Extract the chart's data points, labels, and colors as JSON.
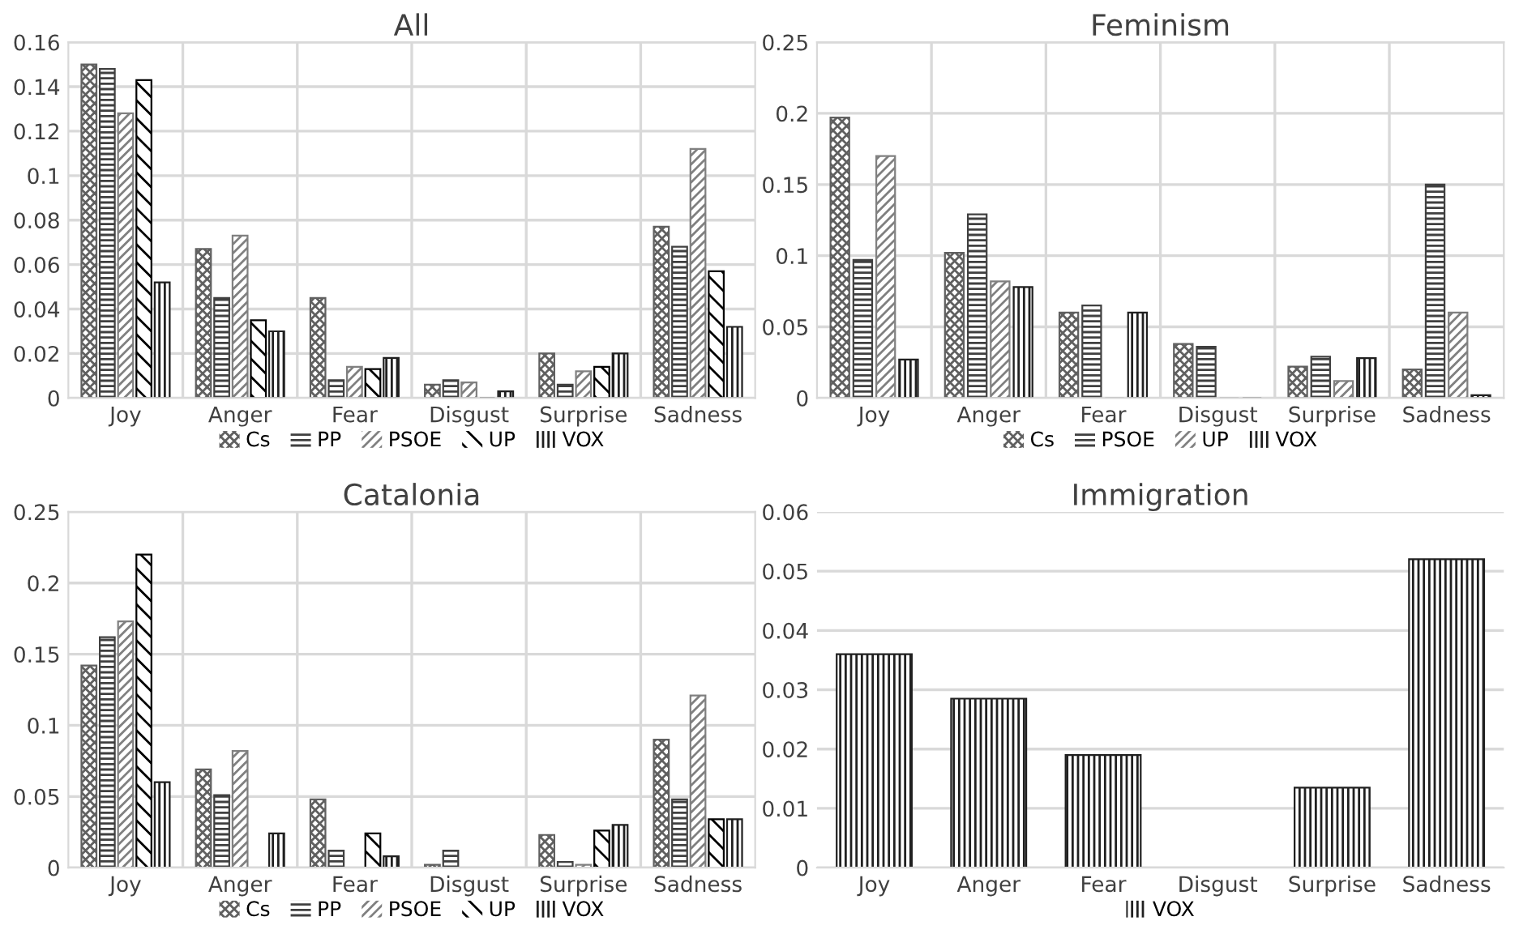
{
  "chart_data": [
    {
      "type": "bar",
      "title": "All",
      "categories": [
        "Joy",
        "Anger",
        "Fear",
        "Disgust",
        "Surprise",
        "Sadness"
      ],
      "ylim": [
        0,
        0.16
      ],
      "yticks": [
        0,
        0.02,
        0.04,
        0.06,
        0.08,
        0.1,
        0.12,
        0.14,
        0.16
      ],
      "grid": true,
      "legend": "bottom",
      "series": [
        {
          "name": "Cs",
          "color": "#606060",
          "values": [
            0.15,
            0.067,
            0.045,
            0.006,
            0.02,
            0.077
          ]
        },
        {
          "name": "PP",
          "color": "#404040",
          "values": [
            0.148,
            0.045,
            0.008,
            0.008,
            0.006,
            0.068
          ]
        },
        {
          "name": "PSOE",
          "color": "#808080",
          "values": [
            0.128,
            0.073,
            0.014,
            0.007,
            0.012,
            0.112
          ]
        },
        {
          "name": "UP",
          "color": "#000000",
          "values": [
            0.143,
            0.035,
            0.013,
            0,
            0.014,
            0.057
          ]
        },
        {
          "name": "VOX",
          "color": "#202020",
          "values": [
            0.052,
            0.03,
            0.018,
            0.003,
            0.02,
            0.032
          ]
        }
      ]
    },
    {
      "type": "bar",
      "title": "Feminism",
      "categories": [
        "Joy",
        "Anger",
        "Fear",
        "Disgust",
        "Surprise",
        "Sadness"
      ],
      "ylim": [
        0,
        0.25
      ],
      "yticks": [
        0,
        0.05,
        0.1,
        0.15,
        0.2,
        0.25
      ],
      "grid": true,
      "legend": "bottom",
      "series": [
        {
          "name": "Cs",
          "color": "#606060",
          "values": [
            0.197,
            0.102,
            0.06,
            0.038,
            0.022,
            0.02
          ]
        },
        {
          "name": "PSOE",
          "color": "#404040",
          "values": [
            0.097,
            0.129,
            0.065,
            0.036,
            0.029,
            0.15
          ]
        },
        {
          "name": "UP",
          "color": "#808080",
          "values": [
            0.17,
            0.082,
            0,
            0,
            0.012,
            0.06
          ]
        },
        {
          "name": "VOX",
          "color": "#202020",
          "values": [
            0.027,
            0.078,
            0.06,
            0,
            0.028,
            0.002
          ]
        }
      ]
    },
    {
      "type": "bar",
      "title": "Catalonia",
      "categories": [
        "Joy",
        "Anger",
        "Fear",
        "Disgust",
        "Surprise",
        "Sadness"
      ],
      "ylim": [
        0,
        0.25
      ],
      "yticks": [
        0,
        0.05,
        0.1,
        0.15,
        0.2,
        0.25
      ],
      "grid": true,
      "legend": "bottom",
      "series": [
        {
          "name": "Cs",
          "color": "#606060",
          "values": [
            0.142,
            0.069,
            0.048,
            0.002,
            0.023,
            0.09
          ]
        },
        {
          "name": "PP",
          "color": "#404040",
          "values": [
            0.162,
            0.051,
            0.012,
            0.012,
            0.004,
            0.048
          ]
        },
        {
          "name": "PSOE",
          "color": "#808080",
          "values": [
            0.173,
            0.082,
            0,
            0,
            0.002,
            0.121
          ]
        },
        {
          "name": "UP",
          "color": "#000000",
          "values": [
            0.22,
            0,
            0.024,
            0,
            0.026,
            0.034
          ]
        },
        {
          "name": "VOX",
          "color": "#202020",
          "values": [
            0.06,
            0.024,
            0.008,
            0,
            0.03,
            0.034
          ]
        }
      ]
    },
    {
      "type": "bar",
      "title": "Immigration",
      "categories": [
        "Joy",
        "Anger",
        "Fear",
        "Disgust",
        "Surprise",
        "Sadness"
      ],
      "ylim": [
        0,
        0.06
      ],
      "yticks": [
        0,
        0.01,
        0.02,
        0.03,
        0.04,
        0.05,
        0.06
      ],
      "grid": "y",
      "legend": "bottom",
      "series": [
        {
          "name": "VOX",
          "color": "#202020",
          "values": [
            0.036,
            0.0285,
            0.019,
            0,
            0.0135,
            0.052
          ]
        }
      ]
    }
  ]
}
